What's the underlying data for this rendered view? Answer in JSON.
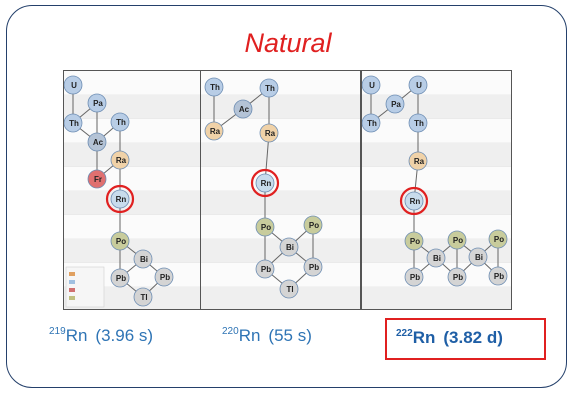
{
  "title": "Natural",
  "colors": {
    "frame": "#24406b",
    "title": "#e02020",
    "label": "#2e74b5",
    "highlight": "#e02020",
    "u_th_pa": "#b8cde6",
    "ac": "#b4c3d6",
    "ra": "#f0d2a8",
    "fr": "#e07070",
    "rn": "#c8dcec",
    "po": "#c8cc9c",
    "bi_pb_tl": "#d4d4d4"
  },
  "panels": [
    {
      "nodes": [
        {
          "id": "u",
          "label": "U"
        },
        {
          "id": "pa",
          "label": "Pa"
        },
        {
          "id": "th1",
          "label": "Th"
        },
        {
          "id": "ac",
          "label": "Ac"
        },
        {
          "id": "th2",
          "label": "Th"
        },
        {
          "id": "ra",
          "label": "Ra"
        },
        {
          "id": "fr",
          "label": "Fr"
        },
        {
          "id": "rn",
          "label": "Rn",
          "highlight": true
        },
        {
          "id": "po",
          "label": "Po"
        },
        {
          "id": "bi",
          "label": "Bi"
        },
        {
          "id": "pb1",
          "label": "Pb"
        },
        {
          "id": "pb2",
          "label": "Pb"
        },
        {
          "id": "tl",
          "label": "Tl"
        }
      ]
    },
    {
      "nodes": [
        {
          "id": "th1",
          "label": "Th"
        },
        {
          "id": "ac",
          "label": "Ac"
        },
        {
          "id": "th2",
          "label": "Th"
        },
        {
          "id": "ra1",
          "label": "Ra"
        },
        {
          "id": "ra2",
          "label": "Ra"
        },
        {
          "id": "rn",
          "label": "Rn",
          "highlight": true
        },
        {
          "id": "po1",
          "label": "Po"
        },
        {
          "id": "po2",
          "label": "Po"
        },
        {
          "id": "bi",
          "label": "Bi"
        },
        {
          "id": "pb1",
          "label": "Pb"
        },
        {
          "id": "pb2",
          "label": "Pb"
        },
        {
          "id": "tl",
          "label": "Tl"
        }
      ]
    },
    {
      "nodes": [
        {
          "id": "u1",
          "label": "U"
        },
        {
          "id": "pa",
          "label": "Pa"
        },
        {
          "id": "u2",
          "label": "U"
        },
        {
          "id": "th1",
          "label": "Th"
        },
        {
          "id": "th2",
          "label": "Th"
        },
        {
          "id": "ra",
          "label": "Ra"
        },
        {
          "id": "rn",
          "label": "Rn",
          "highlight": true
        },
        {
          "id": "po1",
          "label": "Po"
        },
        {
          "id": "po2",
          "label": "Po"
        },
        {
          "id": "po3",
          "label": "Po"
        },
        {
          "id": "bi1",
          "label": "Bi"
        },
        {
          "id": "bi2",
          "label": "Bi"
        },
        {
          "id": "pb1",
          "label": "Pb"
        },
        {
          "id": "pb2",
          "label": "Pb"
        },
        {
          "id": "pb3",
          "label": "Pb"
        }
      ]
    }
  ],
  "labels": [
    {
      "mass": "219",
      "element": "Rn",
      "halflife": "(3.96 s)"
    },
    {
      "mass": "220",
      "element": "Rn",
      "halflife": "(55 s)"
    },
    {
      "mass": "222",
      "element": "Rn",
      "halflife": "(3.82 d)"
    }
  ]
}
